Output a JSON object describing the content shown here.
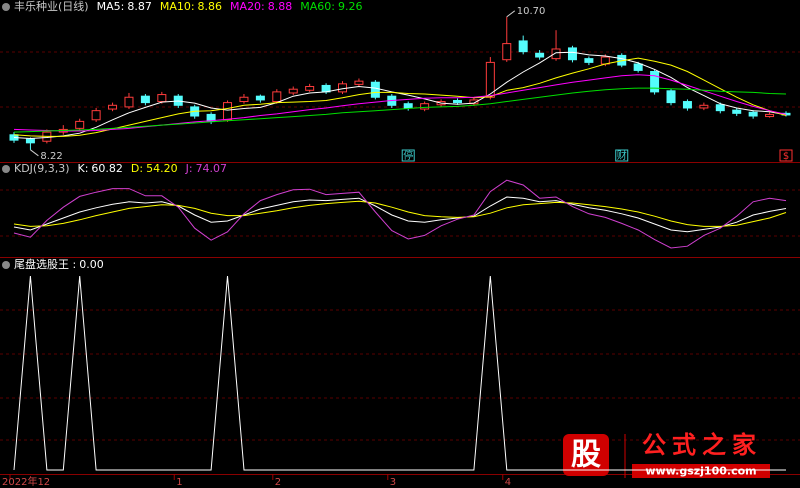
{
  "chart_data": [
    {
      "type": "candlestick",
      "title": "丰乐种业(日线)",
      "categories": [
        "2022年12",
        null,
        null,
        null,
        null,
        null,
        null,
        null,
        null,
        null,
        "1",
        null,
        null,
        null,
        null,
        null,
        "2",
        null,
        null,
        null,
        null,
        null,
        null,
        "3",
        null,
        null,
        null,
        null,
        null,
        null,
        "4",
        null,
        null,
        null,
        null,
        null,
        null,
        null,
        null,
        null,
        null,
        null,
        null,
        null,
        null,
        null,
        null,
        null
      ],
      "open": [
        8.5,
        8.42,
        8.38,
        8.55,
        8.62,
        8.78,
        8.98,
        9.02,
        9.22,
        9.12,
        9.22,
        9.02,
        8.88,
        8.78,
        9.12,
        9.22,
        9.12,
        9.28,
        9.33,
        9.42,
        9.3,
        9.44,
        9.48,
        9.22,
        9.08,
        8.98,
        9.06,
        9.14,
        9.08,
        9.2,
        9.9,
        10.25,
        10.02,
        9.92,
        10.12,
        9.92,
        9.82,
        9.98,
        9.82,
        9.68,
        9.32,
        9.12,
        9.0,
        9.06,
        8.96,
        8.92,
        8.84,
        8.9
      ],
      "high": [
        8.55,
        8.45,
        8.6,
        8.68,
        8.8,
        9.0,
        9.1,
        9.28,
        9.26,
        9.3,
        9.26,
        9.06,
        8.92,
        9.14,
        9.26,
        9.25,
        9.35,
        9.4,
        9.45,
        9.46,
        9.5,
        9.55,
        9.52,
        9.26,
        9.12,
        9.12,
        9.16,
        9.18,
        9.2,
        9.95,
        10.7,
        10.35,
        10.08,
        10.45,
        10.16,
        9.96,
        10.0,
        10.02,
        9.86,
        9.72,
        9.36,
        9.16,
        9.1,
        9.1,
        9.0,
        8.96,
        8.92,
        8.94
      ],
      "low": [
        8.35,
        8.22,
        8.34,
        8.5,
        8.58,
        8.74,
        8.94,
        8.98,
        9.05,
        9.08,
        9.0,
        8.8,
        8.7,
        8.74,
        9.08,
        9.1,
        9.08,
        9.24,
        9.3,
        9.26,
        9.26,
        9.4,
        9.16,
        9.0,
        8.95,
        8.94,
        9.02,
        9.06,
        9.04,
        9.16,
        9.86,
        10.0,
        9.9,
        9.88,
        9.85,
        9.8,
        9.78,
        9.76,
        9.66,
        9.25,
        9.05,
        8.95,
        8.96,
        8.9,
        8.85,
        8.8,
        8.82,
        8.84
      ],
      "close": [
        8.4,
        8.35,
        8.55,
        8.6,
        8.75,
        8.95,
        9.05,
        9.2,
        9.1,
        9.25,
        9.05,
        8.85,
        8.75,
        9.1,
        9.2,
        9.15,
        9.3,
        9.35,
        9.4,
        9.3,
        9.45,
        9.5,
        9.2,
        9.05,
        9.0,
        9.08,
        9.12,
        9.1,
        9.15,
        9.85,
        10.2,
        10.05,
        9.95,
        10.1,
        9.9,
        9.85,
        9.95,
        9.8,
        9.7,
        9.3,
        9.1,
        9.0,
        9.05,
        8.95,
        8.9,
        8.85,
        8.88,
        8.87
      ],
      "up_color": "#ff3c3c",
      "down_color": "#54fcfc",
      "ylim": [
        8.03,
        10.92
      ],
      "series": [
        {
          "name": "MA5:",
          "color": "#ffffff",
          "values": [
            8.45,
            8.43,
            8.45,
            8.48,
            8.53,
            8.64,
            8.78,
            8.91,
            9.01,
            9.11,
            9.13,
            9.09,
            9.0,
            8.96,
            8.99,
            9.01,
            9.1,
            9.22,
            9.28,
            9.3,
            9.36,
            9.4,
            9.37,
            9.3,
            9.24,
            9.17,
            9.09,
            9.07,
            9.09,
            9.26,
            9.48,
            9.67,
            9.84,
            10.03,
            10.04,
            9.99,
            9.97,
            9.92,
            9.84,
            9.72,
            9.57,
            9.38,
            9.23,
            9.08,
            9.0,
            8.95,
            8.93,
            8.87
          ]
        },
        {
          "name": "MA10:",
          "color": "#ffff00",
          "values": [
            8.5,
            8.48,
            8.47,
            8.47,
            8.49,
            8.54,
            8.61,
            8.68,
            8.75,
            8.82,
            8.89,
            8.94,
            8.95,
            8.99,
            9.05,
            9.07,
            9.1,
            9.11,
            9.12,
            9.14,
            9.19,
            9.25,
            9.29,
            9.29,
            9.27,
            9.26,
            9.24,
            9.22,
            9.19,
            9.21,
            9.33,
            9.38,
            9.46,
            9.56,
            9.65,
            9.73,
            9.82,
            9.88,
            9.93,
            9.87,
            9.8,
            9.68,
            9.52,
            9.36,
            9.2,
            9.06,
            8.95,
            8.86
          ]
        },
        {
          "name": "MA20:",
          "color": "#ff00ff",
          "values": [
            8.6,
            8.59,
            8.58,
            8.57,
            8.57,
            8.58,
            8.6,
            8.62,
            8.65,
            8.68,
            8.71,
            8.74,
            8.76,
            8.79,
            8.82,
            8.86,
            8.89,
            8.93,
            8.97,
            9.0,
            9.04,
            9.08,
            9.11,
            9.14,
            9.16,
            9.18,
            9.19,
            9.19,
            9.2,
            9.23,
            9.28,
            9.33,
            9.38,
            9.43,
            9.48,
            9.52,
            9.56,
            9.6,
            9.62,
            9.6,
            9.52,
            9.42,
            9.32,
            9.22,
            9.12,
            9.03,
            8.95,
            8.88
          ]
        },
        {
          "name": "MA60:",
          "color": "#00e000",
          "values": [
            8.55,
            8.56,
            8.57,
            8.58,
            8.59,
            8.6,
            8.62,
            8.64,
            8.66,
            8.68,
            8.7,
            8.72,
            8.74,
            8.76,
            8.78,
            8.8,
            8.82,
            8.84,
            8.86,
            8.88,
            8.91,
            8.93,
            8.95,
            8.97,
            8.99,
            9.01,
            9.02,
            9.03,
            9.05,
            9.08,
            9.12,
            9.16,
            9.2,
            9.24,
            9.28,
            9.31,
            9.34,
            9.36,
            9.37,
            9.37,
            9.36,
            9.35,
            9.33,
            9.31,
            9.3,
            9.29,
            9.27,
            9.26
          ]
        }
      ],
      "annotations": [
        {
          "value": 10.7,
          "label": "10.70"
        },
        {
          "value": 8.22,
          "label": "8.22"
        }
      ],
      "events": [
        {
          "label": "停",
          "index": 24,
          "color": "#3cc8c8"
        },
        {
          "label": "财",
          "index": 37,
          "color": "#3cc8c8"
        },
        {
          "label": "$",
          "index": 47,
          "color": "#ff3030"
        }
      ]
    },
    {
      "type": "line",
      "title": "KDJ(9,3,3)",
      "ylim": [
        -15,
        115
      ],
      "series": [
        {
          "name": "K:",
          "color": "#ffffff",
          "values": [
            30,
            25,
            35,
            45,
            55,
            62,
            68,
            72,
            70,
            72,
            65,
            50,
            38,
            40,
            50,
            60,
            66,
            72,
            75,
            74,
            76,
            78,
            65,
            50,
            40,
            38,
            42,
            45,
            48,
            65,
            80,
            78,
            72,
            74,
            68,
            62,
            58,
            52,
            45,
            35,
            25,
            22,
            26,
            30,
            38,
            50,
            56,
            60.82
          ]
        },
        {
          "name": "D:",
          "color": "#ffff00",
          "values": [
            35,
            31,
            32,
            36,
            42,
            49,
            55,
            61,
            64,
            67,
            66,
            61,
            53,
            49,
            49,
            53,
            57,
            62,
            66,
            69,
            71,
            73,
            70,
            63,
            55,
            49,
            47,
            46,
            47,
            53,
            62,
            67,
            69,
            71,
            70,
            67,
            64,
            60,
            55,
            48,
            40,
            34,
            31,
            31,
            33,
            39,
            45,
            54.2
          ],
          "value_labels": [
            null,
            null,
            null,
            null,
            null,
            null,
            null,
            null,
            null,
            null,
            null,
            null,
            null,
            null,
            null,
            null,
            null,
            null,
            null,
            null,
            null,
            null,
            null,
            null,
            null,
            null,
            null,
            null,
            null,
            null,
            null,
            null,
            null,
            null,
            null,
            null,
            null,
            null,
            null,
            null,
            null,
            null,
            null,
            null,
            null,
            null,
            null,
            "54.20"
          ]
        },
        {
          "name": "J:",
          "color": "#d040d0",
          "values": [
            20,
            13,
            41,
            63,
            81,
            88,
            94,
            94,
            82,
            82,
            63,
            28,
            8,
            22,
            52,
            74,
            84,
            92,
            93,
            84,
            86,
            88,
            55,
            24,
            10,
            16,
            32,
            43,
            50,
            89,
            108,
            100,
            78,
            80,
            64,
            52,
            46,
            36,
            25,
            9,
            -5,
            -2,
            16,
            28,
            48,
            72,
            78,
            74.07
          ]
        }
      ]
    },
    {
      "type": "line",
      "ylim": [
        0,
        1
      ],
      "series": [
        {
          "name": "尾盘选股王 :",
          "color": "#ffffff",
          "values": [
            0,
            1,
            0,
            0,
            1,
            0,
            0,
            0,
            0,
            0,
            0,
            0,
            0,
            1,
            0,
            0,
            0,
            0,
            0,
            0,
            0,
            0,
            0,
            0,
            0,
            0,
            0,
            0,
            0,
            1,
            0,
            0,
            0,
            0,
            0,
            0,
            0,
            0,
            0,
            0,
            0,
            0,
            0,
            0,
            0,
            0,
            0,
            0
          ],
          "value_labels": [
            null,
            null,
            null,
            null,
            null,
            null,
            null,
            null,
            null,
            null,
            null,
            null,
            null,
            null,
            null,
            null,
            null,
            null,
            null,
            null,
            null,
            null,
            null,
            null,
            null,
            null,
            null,
            null,
            null,
            null,
            null,
            null,
            null,
            null,
            null,
            null,
            null,
            null,
            null,
            null,
            null,
            null,
            null,
            null,
            null,
            null,
            null,
            "0.00"
          ]
        }
      ]
    }
  ],
  "watermark": {
    "icon": "股",
    "name": "公式之家",
    "url": "www.gszj100.com"
  }
}
